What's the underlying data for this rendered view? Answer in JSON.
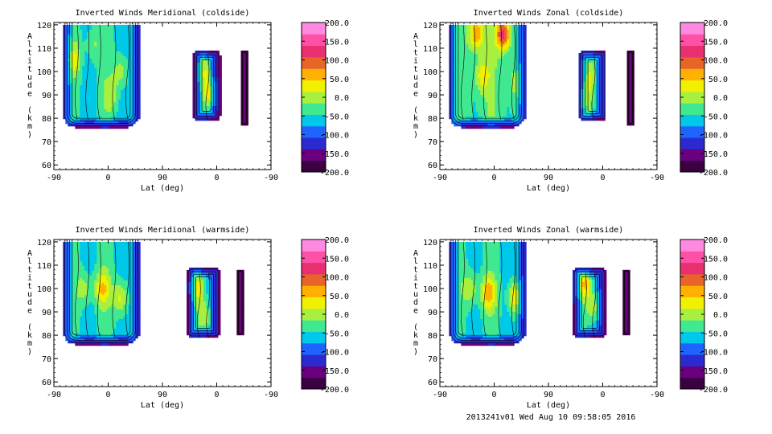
{
  "chart_data": [
    {
      "type": "heatmap",
      "title": "Inverted Winds Meridional (coldside)",
      "xlabel": "Lat (deg)",
      "ylabel": "Altitude (km)",
      "xticks": [
        "-90",
        "0",
        "90",
        "0",
        "-90"
      ],
      "yticks": [
        "60",
        "70",
        "80",
        "90",
        "100",
        "110",
        "120"
      ],
      "ylim": [
        58,
        121
      ],
      "colorbar_ticks": [
        "200.0",
        "150.0",
        "100.0",
        "50.0",
        "0.0",
        "-50.0",
        "-100.0",
        "-150.0",
        "-200.0"
      ],
      "colorbar_range": [
        -200,
        200
      ],
      "regions": [
        {
          "x": [
            -75,
            52
          ],
          "y": [
            76,
            120
          ],
          "top_open": true,
          "mean": -45,
          "peaks": [
            [
              -58,
              105,
              25
            ],
            [
              -25,
              112,
              -5
            ],
            [
              20,
              100,
              10
            ],
            [
              5,
              90,
              0
            ]
          ]
        },
        {
          "x": [
            140,
            186
          ],
          "y": [
            79,
            109
          ],
          "top_open": false,
          "mean": -65,
          "peaks": [
            [
              168,
              90,
              15
            ],
            [
              160,
              100,
              0
            ]
          ]
        },
        {
          "x": [
            220,
            232
          ],
          "y": [
            77,
            109
          ],
          "top_open": false,
          "mean": -150,
          "peaks": []
        }
      ]
    },
    {
      "type": "heatmap",
      "title": "Inverted Winds Zonal (coldside)",
      "xlabel": "Lat (deg)",
      "ylabel": "Altitude (km)",
      "xticks": [
        "-90",
        "0",
        "90",
        "0",
        "-90"
      ],
      "yticks": [
        "60",
        "70",
        "80",
        "90",
        "100",
        "110",
        "120"
      ],
      "ylim": [
        58,
        121
      ],
      "colorbar_ticks": [
        "200.0",
        "150.0",
        "100.0",
        "50.0",
        "0.0",
        "-50.0",
        "-100.0",
        "-150.0",
        "-200.0"
      ],
      "colorbar_range": [
        -200,
        200
      ],
      "regions": [
        {
          "x": [
            -75,
            52
          ],
          "y": [
            76,
            120
          ],
          "top_open": true,
          "mean": -30,
          "peaks": [
            [
              -30,
              116,
              90
            ],
            [
              15,
              116,
              130
            ],
            [
              -20,
              98,
              40
            ],
            [
              35,
              95,
              15
            ]
          ]
        },
        {
          "x": [
            140,
            186
          ],
          "y": [
            79,
            109
          ],
          "top_open": false,
          "mean": -55,
          "peaks": [
            [
              148,
              88,
              30
            ],
            [
              158,
              98,
              5
            ]
          ]
        },
        {
          "x": [
            220,
            232
          ],
          "y": [
            77,
            109
          ],
          "top_open": false,
          "mean": -150,
          "peaks": []
        }
      ]
    },
    {
      "type": "heatmap",
      "title": "Inverted Winds Meridional (warmside)",
      "xlabel": "Lat (deg)",
      "ylabel": "Altitude (km)",
      "xticks": [
        "-90",
        "0",
        "90",
        "0",
        "-90"
      ],
      "yticks": [
        "60",
        "70",
        "80",
        "90",
        "100",
        "110",
        "120"
      ],
      "ylim": [
        58,
        121
      ],
      "colorbar_ticks": [
        "200.0",
        "150.0",
        "100.0",
        "50.0",
        "0.0",
        "-50.0",
        "-100.0",
        "-150.0",
        "-200.0"
      ],
      "colorbar_range": [
        -200,
        200
      ],
      "regions": [
        {
          "x": [
            -75,
            52
          ],
          "y": [
            76,
            120
          ],
          "top_open": true,
          "mean": -45,
          "peaks": [
            [
              -10,
              100,
              45
            ],
            [
              20,
              96,
              35
            ],
            [
              -40,
              100,
              10
            ]
          ]
        },
        {
          "x": [
            130,
            186
          ],
          "y": [
            79,
            109
          ],
          "top_open": false,
          "mean": -65,
          "peaks": [
            [
              150,
              100,
              20
            ],
            [
              160,
              88,
              10
            ]
          ]
        },
        {
          "x": [
            213,
            226
          ],
          "y": [
            80,
            108
          ],
          "top_open": false,
          "mean": -150,
          "peaks": []
        }
      ]
    },
    {
      "type": "heatmap",
      "title": "Inverted Winds Zonal (warmside)",
      "xlabel": "Lat (deg)",
      "ylabel": "Altitude (km)",
      "xticks": [
        "-90",
        "0",
        "90",
        "0",
        "-90"
      ],
      "yticks": [
        "60",
        "70",
        "80",
        "90",
        "100",
        "110",
        "120"
      ],
      "ylim": [
        58,
        121
      ],
      "colorbar_ticks": [
        "200.0",
        "150.0",
        "100.0",
        "50.0",
        "0.0",
        "-50.0",
        "-100.0",
        "-150.0",
        "-200.0"
      ],
      "colorbar_range": [
        -200,
        200
      ],
      "regions": [
        {
          "x": [
            -75,
            52
          ],
          "y": [
            76,
            120
          ],
          "top_open": true,
          "mean": -45,
          "peaks": [
            [
              -10,
              98,
              60
            ],
            [
              35,
              96,
              55
            ],
            [
              -40,
              100,
              20
            ]
          ]
        },
        {
          "x": [
            130,
            186
          ],
          "y": [
            79,
            109
          ],
          "top_open": false,
          "mean": -60,
          "peaks": [
            [
              150,
              102,
              40
            ],
            [
              165,
              92,
              10
            ]
          ]
        },
        {
          "x": [
            213,
            226
          ],
          "y": [
            80,
            108
          ],
          "top_open": false,
          "mean": -150,
          "peaks": []
        }
      ]
    }
  ],
  "footer": "2013241v01 Wed Aug 10 09:58:05 2016",
  "colormap": [
    "#3a0040",
    "#6a0080",
    "#2a2ad0",
    "#1e64ff",
    "#00c8e8",
    "#40e890",
    "#a8f040",
    "#f0f000",
    "#ffb000",
    "#e86428",
    "#e83070",
    "#ff50a8",
    "#ff88e0"
  ]
}
